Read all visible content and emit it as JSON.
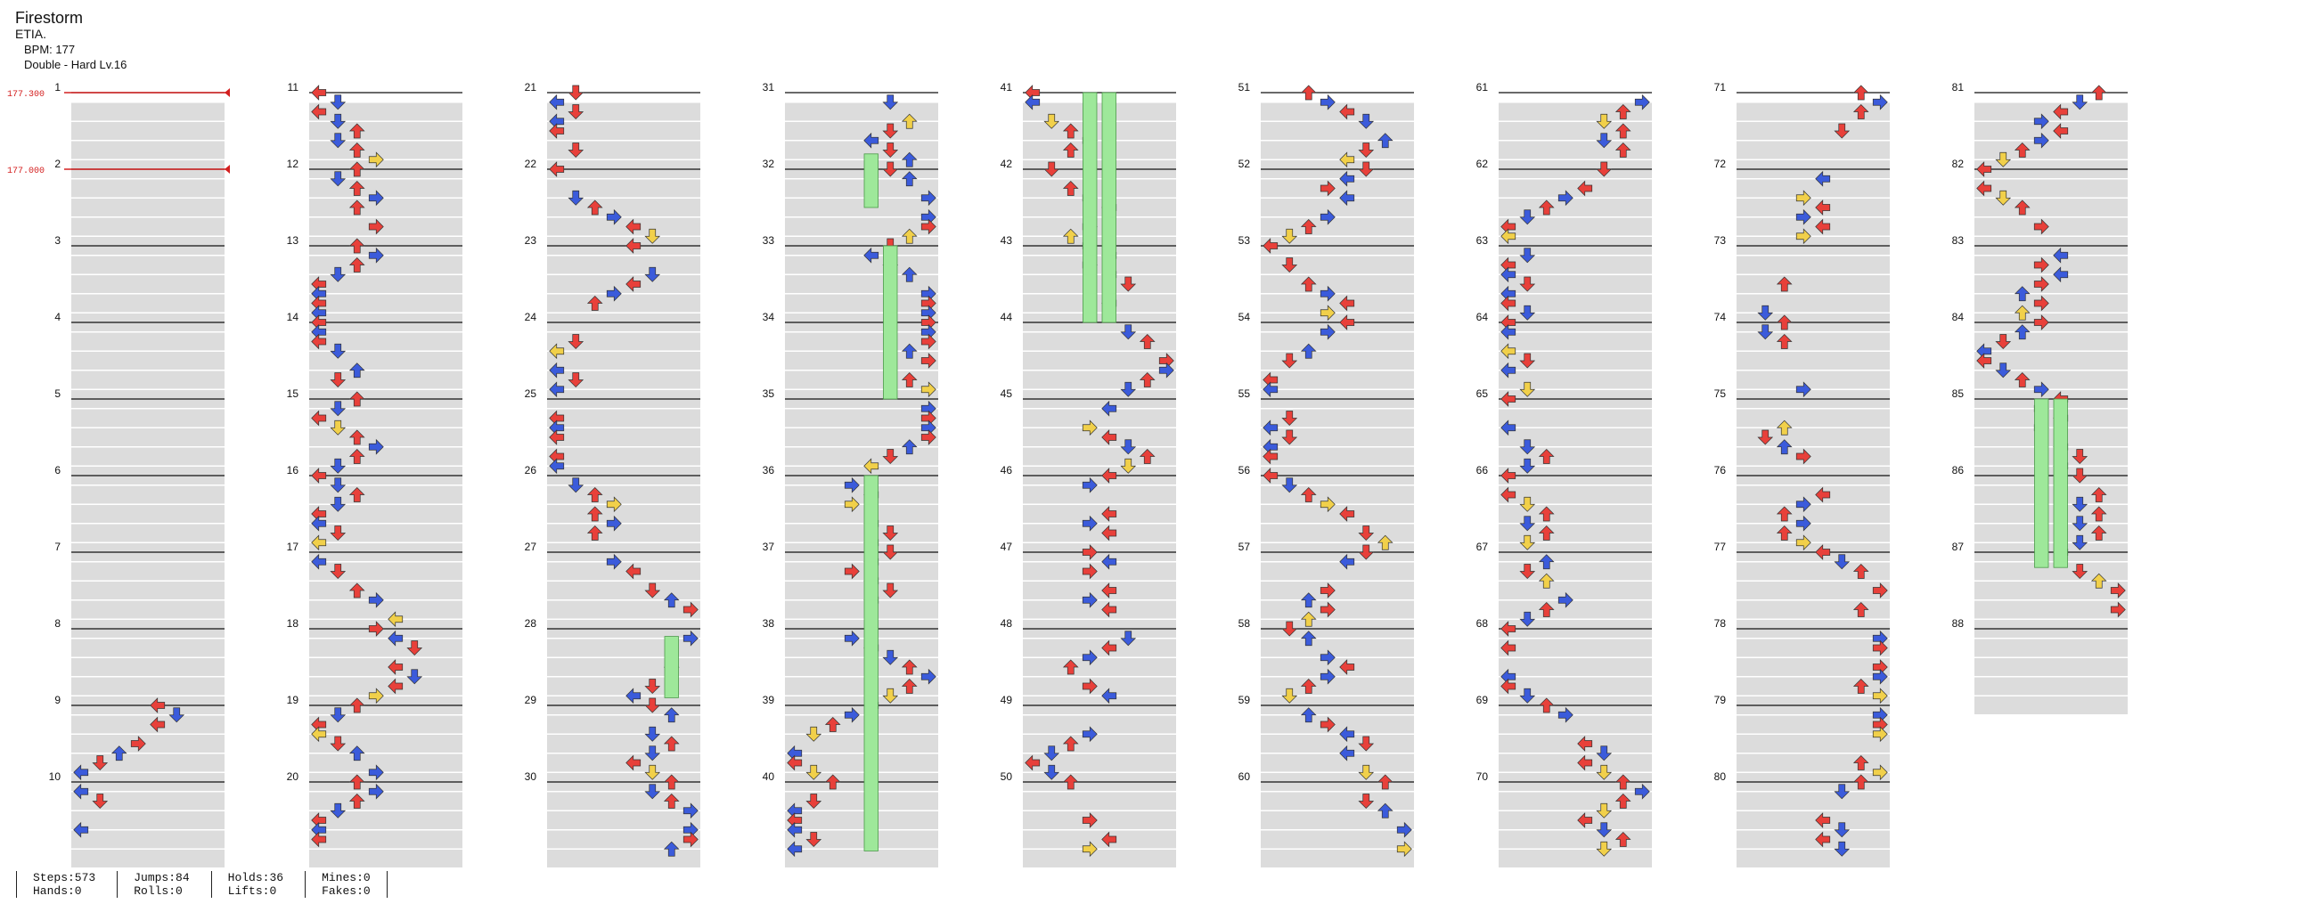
{
  "song": {
    "title": "Firestorm",
    "artist": "ETIA.",
    "bpm_label": "BPM: 177",
    "difficulty_label": "Double - Hard Lv.16"
  },
  "measure_numbers": [
    "1",
    "2",
    "3",
    "4",
    "5",
    "6",
    "7",
    "8",
    "9",
    "10",
    "11",
    "12",
    "13",
    "14",
    "15",
    "16",
    "17",
    "18",
    "19",
    "20",
    "21",
    "22",
    "23",
    "24",
    "25",
    "26",
    "27",
    "28",
    "29",
    "30",
    "31",
    "32",
    "33",
    "34",
    "35",
    "36",
    "37",
    "38",
    "39",
    "40",
    "41",
    "42",
    "43",
    "44",
    "45",
    "46",
    "47",
    "48",
    "49",
    "50",
    "51",
    "52",
    "53",
    "54",
    "55",
    "56",
    "57",
    "58",
    "59",
    "60",
    "61",
    "62",
    "63",
    "64",
    "65",
    "66",
    "67",
    "68",
    "69",
    "70",
    "71",
    "72",
    "73",
    "74",
    "75",
    "76",
    "77",
    "78",
    "79",
    "80",
    "81",
    "82",
    "83",
    "84",
    "85",
    "86",
    "87",
    "88"
  ],
  "measures_per_column": 10,
  "column_count": 9,
  "bpm_changes": [
    {
      "measure": 1,
      "label": "177.300"
    },
    {
      "measure": 2,
      "label": "177.000"
    }
  ],
  "stats": {
    "steps": "Steps:573",
    "hands": "Hands:0",
    "jumps": "Jumps:84",
    "rolls": "Rolls:0",
    "holds": "Holds:36",
    "lifts": "Lifts:0",
    "mines": "Mines:0",
    "fakes": "Fakes:0"
  },
  "colors": {
    "quarter_note": "#e8403a",
    "eighth_note": "#3b5bdb",
    "sixteenth_note": "#f1d04a",
    "hold_body": "#9ee89a",
    "bpm_marker": "#d42020",
    "measure_band": "#dcdcdc"
  },
  "arrow_icons": [
    "left-arrow-icon",
    "down-arrow-icon",
    "up-arrow-icon",
    "right-arrow-icon"
  ]
}
